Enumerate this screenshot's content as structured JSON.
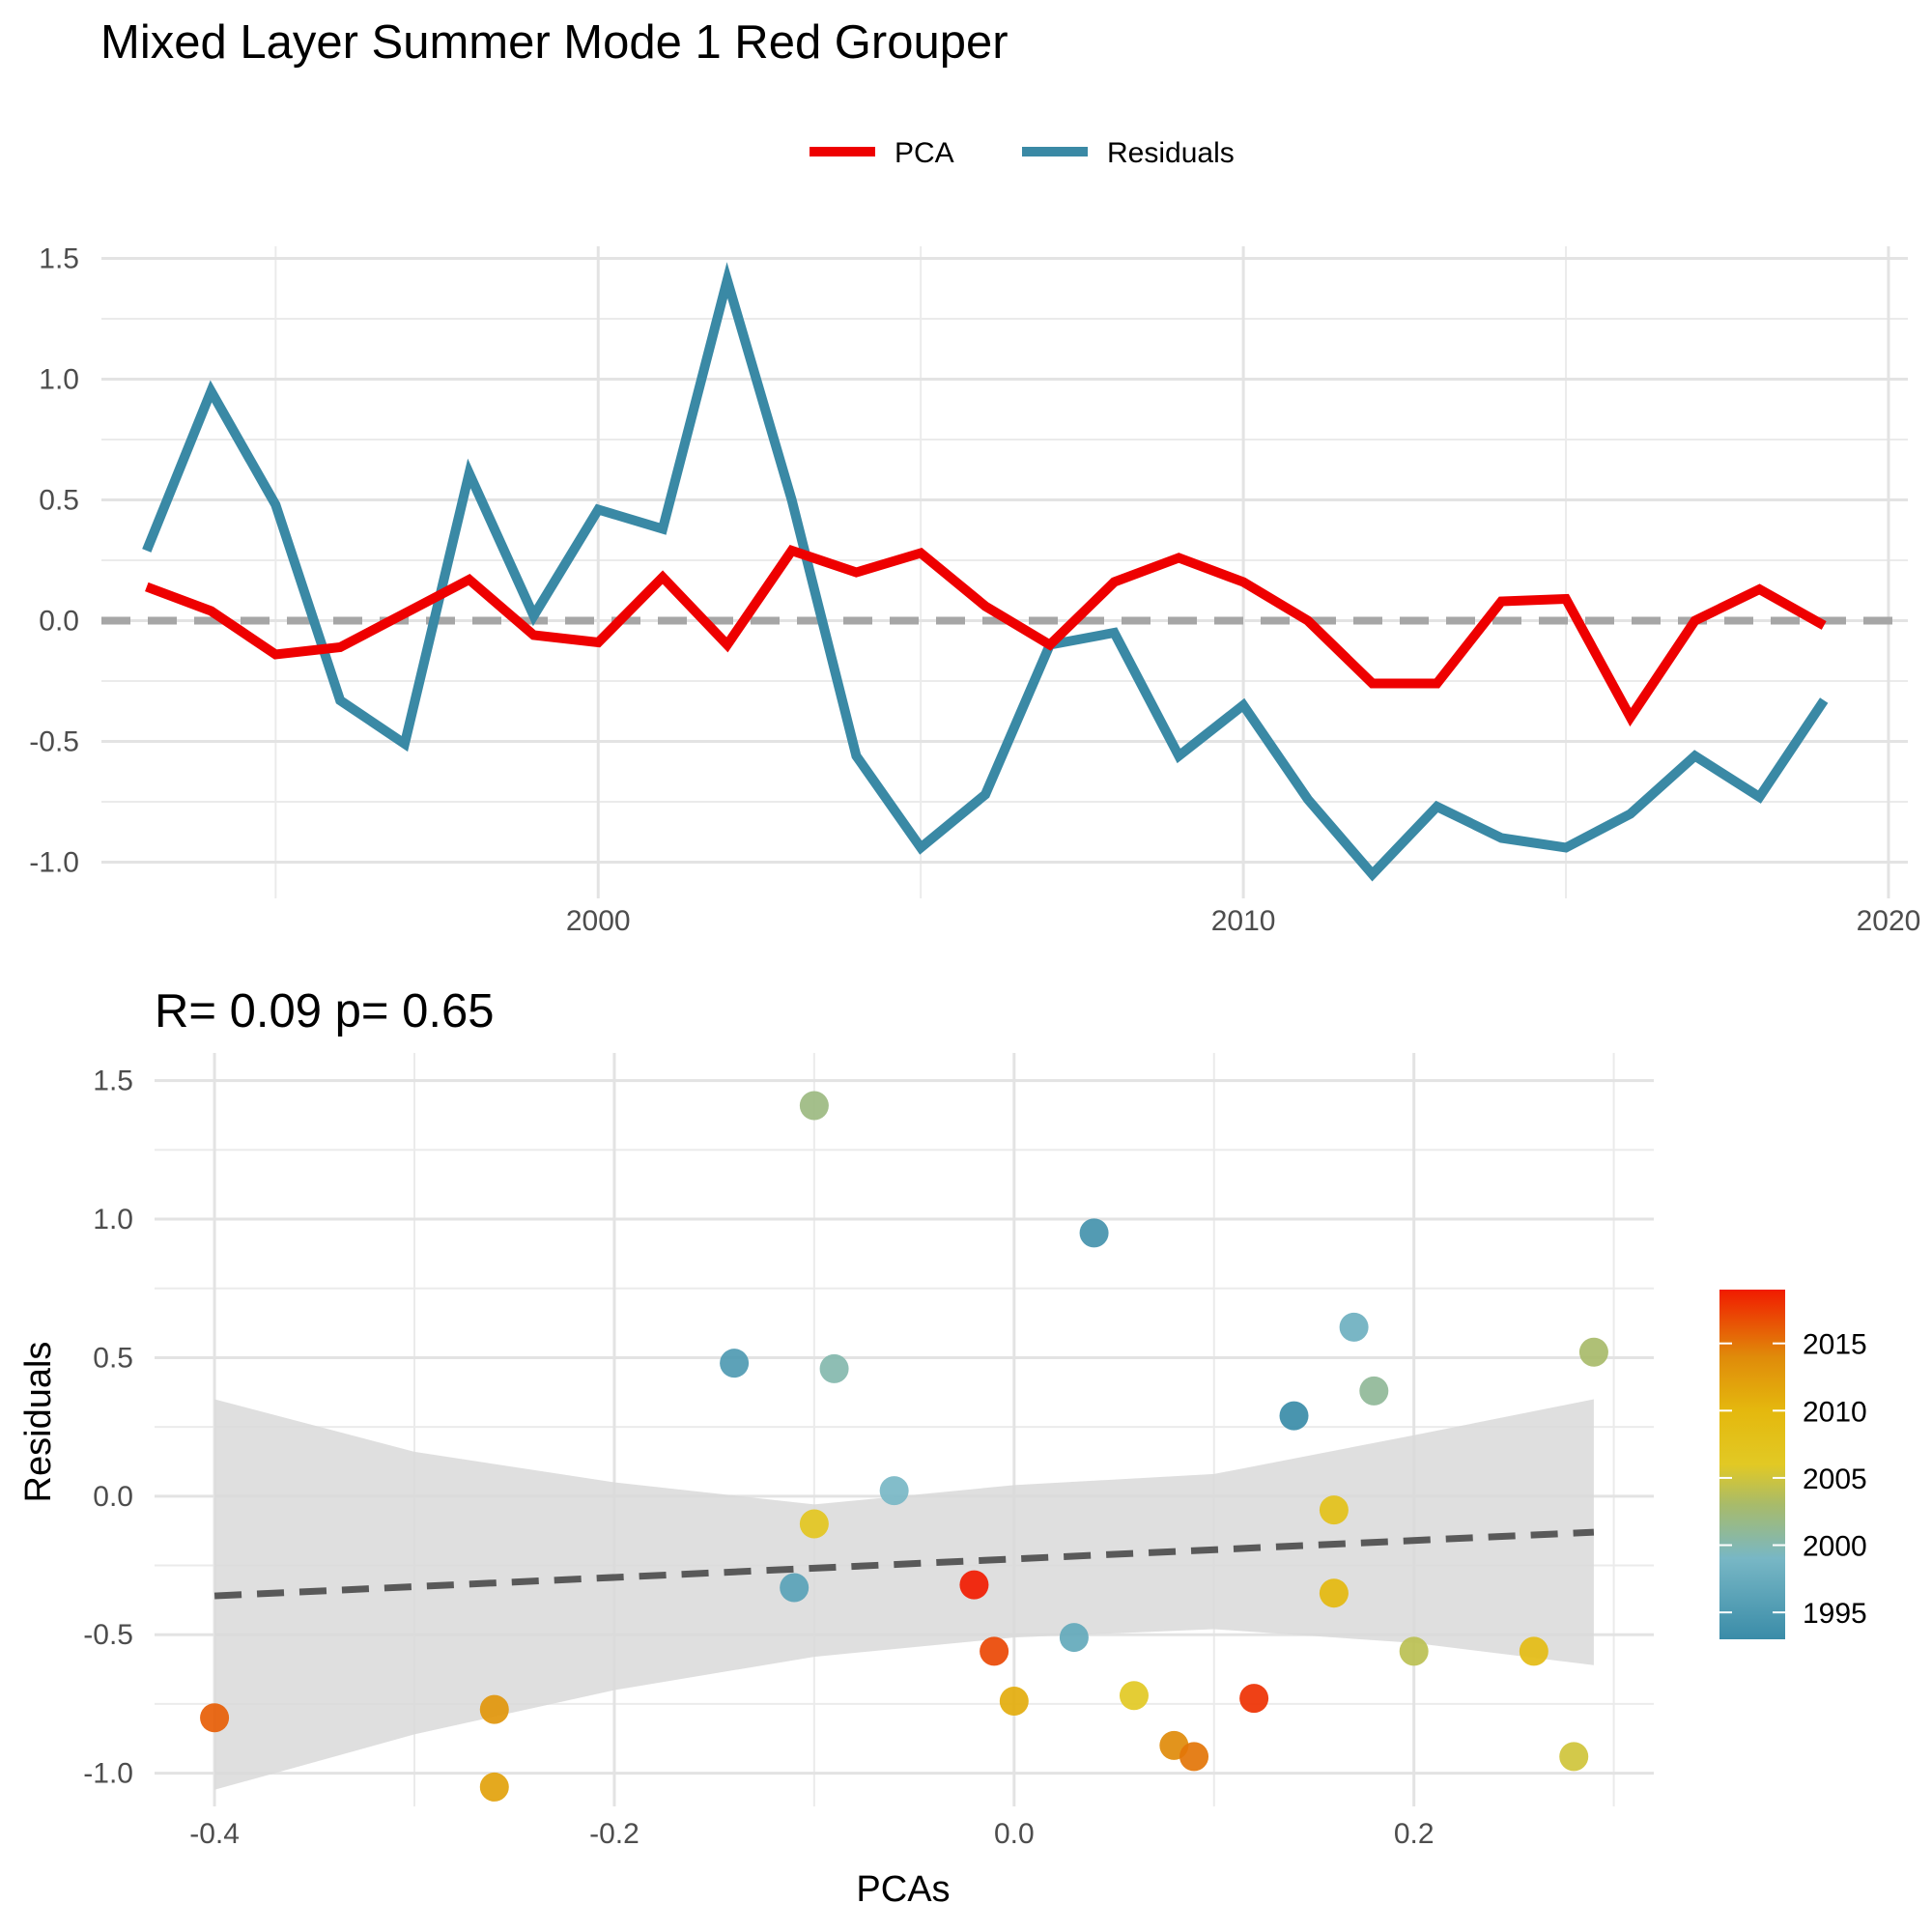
{
  "page": {
    "title": "Mixed Layer Summer Mode 1 Red Grouper"
  },
  "chart_data": [
    {
      "type": "line",
      "title": "Mixed Layer Summer Mode 1 Red Grouper",
      "xlabel": "",
      "ylabel": "",
      "x": [
        1993,
        1994,
        1995,
        1996,
        1997,
        1998,
        1999,
        2000,
        2001,
        2002,
        2003,
        2004,
        2005,
        2006,
        2007,
        2008,
        2009,
        2010,
        2011,
        2012,
        2013,
        2014,
        2015,
        2016,
        2017,
        2018,
        2019
      ],
      "series": [
        {
          "name": "PCA",
          "color": "#EE0000",
          "values": [
            0.14,
            0.04,
            -0.14,
            -0.11,
            0.03,
            0.17,
            -0.06,
            -0.09,
            0.18,
            -0.1,
            0.29,
            0.2,
            0.28,
            0.06,
            -0.1,
            0.16,
            0.26,
            0.16,
            0.0,
            -0.26,
            -0.26,
            0.08,
            0.09,
            -0.4,
            0.0,
            0.13,
            -0.02
          ]
        },
        {
          "name": "Residuals",
          "color": "#3A89A5",
          "values": [
            0.29,
            0.95,
            0.48,
            -0.33,
            -0.51,
            0.61,
            0.02,
            0.46,
            0.38,
            1.41,
            0.5,
            -0.56,
            -0.94,
            -0.72,
            -0.1,
            -0.05,
            -0.56,
            -0.35,
            -0.74,
            -1.05,
            -0.77,
            -0.9,
            -0.94,
            -0.8,
            -0.56,
            -0.73,
            -0.33
          ]
        }
      ],
      "reference_line": {
        "y": 0,
        "style": "dashed",
        "color": "#A6A6A6"
      },
      "xlim": [
        1992.3,
        2020.3
      ],
      "ylim": [
        -1.15,
        1.55
      ],
      "x_ticks": [
        "2000",
        "2010",
        "2020"
      ],
      "y_ticks": [
        "-1.0",
        "-0.5",
        "0.0",
        "0.5",
        "1.0",
        "1.5"
      ],
      "legend": {
        "placement": "top",
        "entries": [
          "PCA",
          "Residuals"
        ]
      },
      "grid": true
    },
    {
      "type": "scatter",
      "title": "R= 0.09  p= 0.65",
      "xlabel": "PCAs",
      "ylabel": "Residuals",
      "xlim": [
        -0.43,
        0.32
      ],
      "ylim": [
        -1.12,
        1.6
      ],
      "x_ticks": [
        "-0.4",
        "-0.2",
        "0.0",
        "0.2"
      ],
      "y_ticks": [
        "-1.0",
        "-0.5",
        "0.0",
        "0.5",
        "1.0",
        "1.5"
      ],
      "points": [
        {
          "x": 0.14,
          "y": 0.29,
          "year": 1993
        },
        {
          "x": 0.04,
          "y": 0.95,
          "year": 1994
        },
        {
          "x": -0.14,
          "y": 0.48,
          "year": 1995
        },
        {
          "x": -0.11,
          "y": -0.33,
          "year": 1996
        },
        {
          "x": 0.03,
          "y": -0.51,
          "year": 1997
        },
        {
          "x": 0.17,
          "y": 0.61,
          "year": 1998
        },
        {
          "x": -0.06,
          "y": 0.02,
          "year": 1999
        },
        {
          "x": -0.09,
          "y": 0.46,
          "year": 2000
        },
        {
          "x": 0.18,
          "y": 0.38,
          "year": 2001
        },
        {
          "x": -0.1,
          "y": 1.41,
          "year": 2002
        },
        {
          "x": 0.29,
          "y": 0.52,
          "year": 2003
        },
        {
          "x": 0.2,
          "y": -0.56,
          "year": 2004
        },
        {
          "x": 0.28,
          "y": -0.94,
          "year": 2005
        },
        {
          "x": 0.06,
          "y": -0.72,
          "year": 2006
        },
        {
          "x": -0.1,
          "y": -0.1,
          "year": 2007
        },
        {
          "x": 0.16,
          "y": -0.05,
          "year": 2008
        },
        {
          "x": 0.26,
          "y": -0.56,
          "year": 2009
        },
        {
          "x": 0.16,
          "y": -0.35,
          "year": 2010
        },
        {
          "x": 0.0,
          "y": -0.74,
          "year": 2011
        },
        {
          "x": -0.26,
          "y": -1.05,
          "year": 2012
        },
        {
          "x": -0.26,
          "y": -0.77,
          "year": 2013
        },
        {
          "x": 0.08,
          "y": -0.9,
          "year": 2014
        },
        {
          "x": 0.09,
          "y": -0.94,
          "year": 2015
        },
        {
          "x": -0.4,
          "y": -0.8,
          "year": 2016
        },
        {
          "x": -0.01,
          "y": -0.56,
          "year": 2017
        },
        {
          "x": 0.12,
          "y": -0.73,
          "year": 2018
        },
        {
          "x": -0.02,
          "y": -0.32,
          "year": 2019
        }
      ],
      "regression": {
        "x": [
          -0.4,
          0.29
        ],
        "y": [
          -0.36,
          -0.13
        ],
        "style": "dashed",
        "color": "#595959"
      },
      "confidence_band": {
        "x": [
          -0.4,
          -0.3,
          -0.2,
          -0.1,
          0.0,
          0.1,
          0.2,
          0.29
        ],
        "lower": [
          -1.06,
          -0.86,
          -0.7,
          -0.58,
          -0.51,
          -0.48,
          -0.53,
          -0.61
        ],
        "upper": [
          0.35,
          0.16,
          0.05,
          -0.03,
          0.04,
          0.08,
          0.22,
          0.35
        ],
        "color": "#D9D9D9"
      },
      "colorbar": {
        "title": "",
        "ticks": [
          "1995",
          "2000",
          "2005",
          "2010",
          "2015"
        ],
        "range": [
          1993,
          2019
        ],
        "stops": [
          {
            "year": 1993,
            "color": "#3A8CA8"
          },
          {
            "year": 1999,
            "color": "#78B7C5"
          },
          {
            "year": 2003,
            "color": "#A8BB6A"
          },
          {
            "year": 2006,
            "color": "#E2C924"
          },
          {
            "year": 2010,
            "color": "#E4B80E"
          },
          {
            "year": 2014,
            "color": "#E08B0A"
          },
          {
            "year": 2019,
            "color": "#F11B00"
          }
        ]
      },
      "grid": true
    }
  ]
}
